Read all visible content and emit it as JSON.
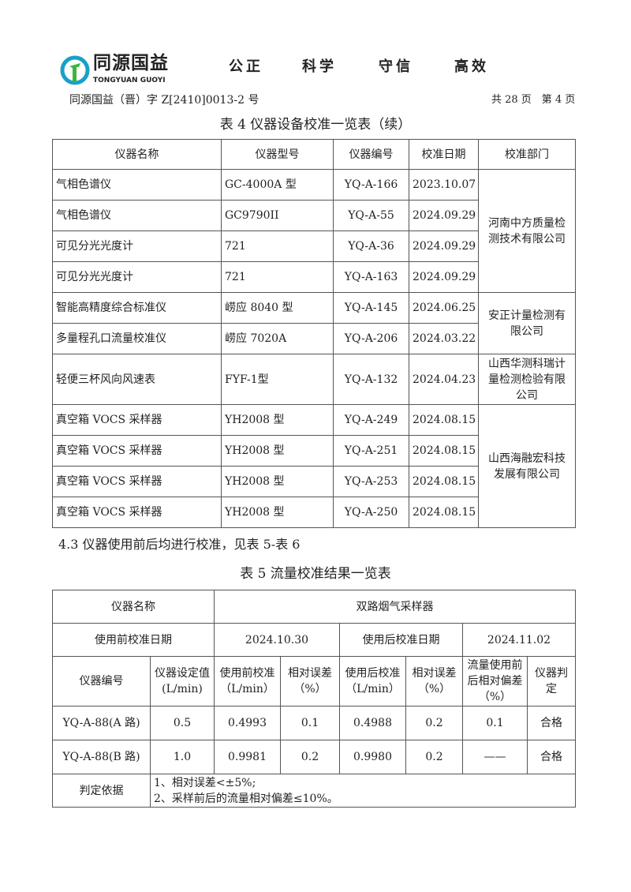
{
  "header": {
    "logo_cn": "同源国益",
    "logo_en": "TONGYUAN GUOYI",
    "motto": [
      "公正",
      "科学",
      "守信",
      "高效"
    ],
    "doc_number": "同源国益（晋）字 Z[2410]0013-2 号",
    "page_info": "共 28 页　第 4 页",
    "brand_color": "#1aa0c8"
  },
  "table4": {
    "title": "表 4  仪器设备校准一览表（续）",
    "headers": [
      "仪器名称",
      "仪器型号",
      "仪器编号",
      "校准日期",
      "校准部门"
    ],
    "rows": [
      [
        "气相色谱仪",
        "GC-4000A 型",
        "YQ-A-166",
        "2023.10.07"
      ],
      [
        "气相色谱仪",
        "GC9790II",
        "YQ-A-55",
        "2024.09.29"
      ],
      [
        "可见分光光度计",
        "721",
        "YQ-A-36",
        "2024.09.29"
      ],
      [
        "可见分光光度计",
        "721",
        "YQ-A-163",
        "2024.09.29"
      ],
      [
        "智能高精度综合标准仪",
        "崂应 8040 型",
        "YQ-A-145",
        "2024.06.25"
      ],
      [
        "多量程孔口流量校准仪",
        "崂应 7020A",
        "YQ-A-206",
        "2024.03.22"
      ],
      [
        "轻便三杯风向风速表",
        "FYF-1型",
        "YQ-A-132",
        "2024.04.23"
      ],
      [
        "真空箱 VOCS 采样器",
        "YH2008 型",
        "YQ-A-249",
        "2024.08.15"
      ],
      [
        "真空箱 VOCS 采样器",
        "YH2008 型",
        "YQ-A-251",
        "2024.08.15"
      ],
      [
        "真空箱 VOCS 采样器",
        "YH2008 型",
        "YQ-A-253",
        "2024.08.15"
      ],
      [
        "真空箱 VOCS 采样器",
        "YH2008 型",
        "YQ-A-250",
        "2024.08.15"
      ]
    ],
    "departments": [
      "河南中方质量检测技术有限公司",
      "安正计量检测有限公司",
      "山西华测科瑞计量检测检验有限公司",
      "山西海融宏科技发展有限公司"
    ]
  },
  "section": "4.3  仪器使用前后均进行校准，见表 5-表 6",
  "table5": {
    "title": "表 5 流量校准结果一览表",
    "name_label": "仪器名称",
    "name_value": "双路烟气采样器",
    "pre_date_label": "使用前校准日期",
    "pre_date": "2024.10.30",
    "post_date_label": "使用后校准日期",
    "post_date": "2024.11.02",
    "headers": [
      "仪器编号",
      "仪器设定值(L/min)",
      "使用前校准（L/min）",
      "相对误差（%）",
      "使用后校准（L/min）",
      "相对误差（%）",
      "流量使用前后相对偏差（%）",
      "仪器判定"
    ],
    "rows": [
      [
        "YQ-A-88(A 路)",
        "0.5",
        "0.4993",
        "0.1",
        "0.4988",
        "0.2",
        "0.1",
        "合格"
      ],
      [
        "YQ-A-88(B 路)",
        "1.0",
        "0.9981",
        "0.2",
        "0.9980",
        "0.2",
        "——",
        "合格"
      ]
    ],
    "basis_label": "判定依据",
    "basis": [
      "1、相对误差<±5%;",
      "2、采样前后的流量相对偏差≤10%。"
    ]
  }
}
